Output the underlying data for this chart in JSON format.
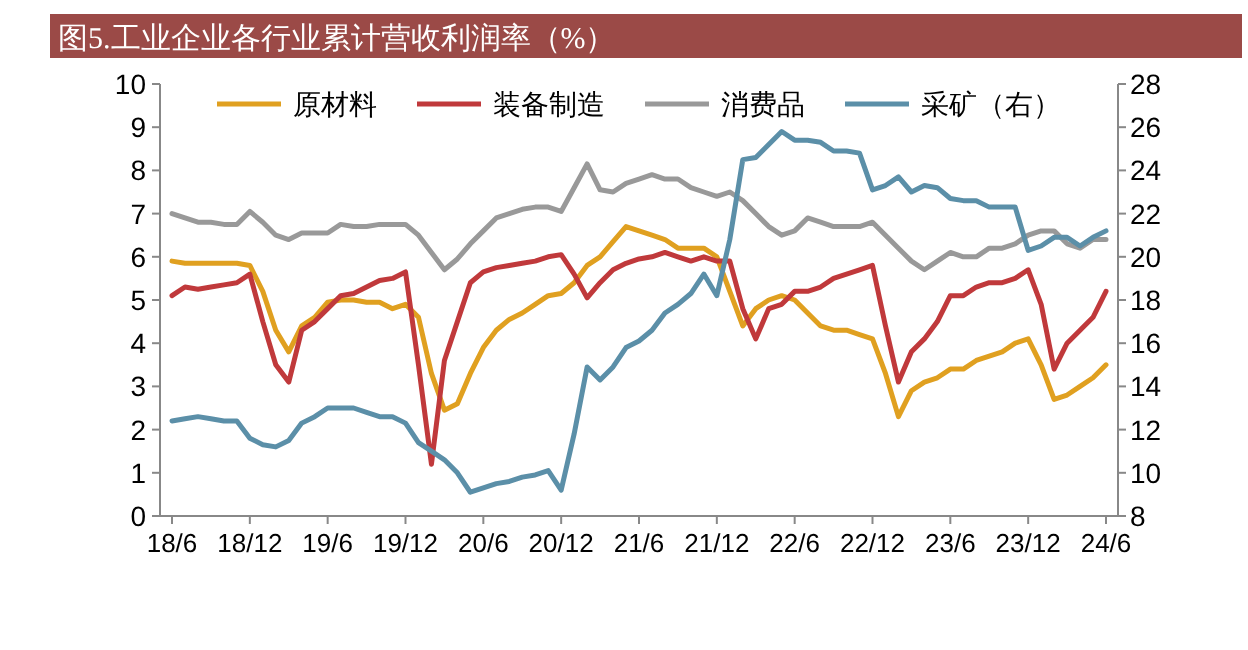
{
  "chart_data": {
    "type": "line",
    "title": "图5.工业企业各行业累计营收利润率（%）",
    "categories": [
      "18/6",
      null,
      null,
      null,
      null,
      null,
      "18/12",
      null,
      null,
      null,
      null,
      null,
      "19/6",
      null,
      null,
      null,
      null,
      null,
      "19/12",
      null,
      null,
      null,
      null,
      null,
      "20/6",
      null,
      null,
      null,
      null,
      null,
      "20/12",
      null,
      null,
      null,
      null,
      null,
      "21/6",
      null,
      null,
      null,
      null,
      null,
      "21/12",
      null,
      null,
      null,
      null,
      null,
      "22/6",
      null,
      null,
      null,
      null,
      null,
      "22/12",
      null,
      null,
      null,
      null,
      null,
      "23/6",
      null,
      null,
      null,
      null,
      null,
      "23/12",
      null,
      null,
      null,
      null,
      null,
      "24/6"
    ],
    "series": [
      {
        "name": "原材料",
        "color": "#e0a020",
        "values": [
          5.9,
          5.85,
          5.85,
          5.85,
          5.85,
          5.85,
          5.8,
          5.2,
          4.3,
          3.8,
          4.4,
          4.6,
          4.95,
          5.0,
          5.0,
          4.95,
          4.95,
          4.8,
          4.9,
          4.6,
          3.3,
          2.45,
          2.6,
          3.3,
          3.9,
          4.3,
          4.55,
          4.7,
          4.9,
          5.1,
          5.15,
          5.4,
          5.8,
          6.0,
          6.35,
          6.7,
          6.6,
          6.5,
          6.4,
          6.2,
          6.2,
          6.2,
          6.0,
          5.2,
          4.4,
          4.8,
          5.0,
          5.1,
          5.0,
          4.7,
          4.4,
          4.3,
          4.3,
          4.2,
          4.1,
          3.3,
          2.3,
          2.9,
          3.1,
          3.2,
          3.4,
          3.4,
          3.6,
          3.7,
          3.8,
          4.0,
          4.1,
          3.5,
          2.7,
          2.8,
          3.0,
          3.2,
          3.5
        ]
      },
      {
        "name": "装备制造",
        "color": "#c0393b",
        "values": [
          5.1,
          5.3,
          5.25,
          5.3,
          5.35,
          5.4,
          5.6,
          4.5,
          3.5,
          3.1,
          4.3,
          4.5,
          4.8,
          5.1,
          5.15,
          5.3,
          5.45,
          5.5,
          5.65,
          3.5,
          1.2,
          3.6,
          4.5,
          5.4,
          5.65,
          5.75,
          5.8,
          5.85,
          5.9,
          6.0,
          6.05,
          5.6,
          5.05,
          5.4,
          5.7,
          5.85,
          5.95,
          6.0,
          6.1,
          6.0,
          5.9,
          6.0,
          5.9,
          5.9,
          4.8,
          4.1,
          4.8,
          4.9,
          5.2,
          5.2,
          5.3,
          5.5,
          5.6,
          5.7,
          5.8,
          4.4,
          3.1,
          3.8,
          4.1,
          4.5,
          5.1,
          5.1,
          5.3,
          5.4,
          5.4,
          5.5,
          5.7,
          4.9,
          3.4,
          4.0,
          4.3,
          4.6,
          5.2
        ]
      },
      {
        "name": "消费品",
        "color": "#999999",
        "values": [
          7.0,
          6.9,
          6.8,
          6.8,
          6.75,
          6.75,
          7.05,
          6.8,
          6.5,
          6.4,
          6.55,
          6.55,
          6.55,
          6.75,
          6.7,
          6.7,
          6.75,
          6.75,
          6.75,
          6.5,
          6.1,
          5.7,
          5.95,
          6.3,
          6.6,
          6.9,
          7.0,
          7.1,
          7.15,
          7.15,
          7.05,
          7.6,
          8.15,
          7.55,
          7.5,
          7.7,
          7.8,
          7.9,
          7.8,
          7.8,
          7.6,
          7.5,
          7.4,
          7.5,
          7.3,
          7.0,
          6.7,
          6.5,
          6.6,
          6.9,
          6.8,
          6.7,
          6.7,
          6.7,
          6.8,
          6.5,
          6.2,
          5.9,
          5.7,
          5.9,
          6.1,
          6.0,
          6.0,
          6.2,
          6.2,
          6.3,
          6.5,
          6.6,
          6.6,
          6.3,
          6.2,
          6.4,
          6.4
        ]
      },
      {
        "name": "采矿（右）",
        "color": "#5b8fa8",
        "axis": "y2",
        "values": [
          12.4,
          12.5,
          12.6,
          12.5,
          12.4,
          12.4,
          11.6,
          11.3,
          11.2,
          11.5,
          12.3,
          12.6,
          13.0,
          13.0,
          13.0,
          12.8,
          12.6,
          12.6,
          12.3,
          11.4,
          11.0,
          10.6,
          10.0,
          9.1,
          9.3,
          9.5,
          9.6,
          9.8,
          9.9,
          10.1,
          9.2,
          11.8,
          14.9,
          14.3,
          14.9,
          15.8,
          16.1,
          16.6,
          17.4,
          17.8,
          18.3,
          19.2,
          18.2,
          20.8,
          24.5,
          24.6,
          25.2,
          25.8,
          25.4,
          25.4,
          25.3,
          24.9,
          24.9,
          24.8,
          23.1,
          23.3,
          23.7,
          23.0,
          23.3,
          23.2,
          22.7,
          22.6,
          22.6,
          22.3,
          22.3,
          22.3,
          20.3,
          20.5,
          20.9,
          20.9,
          20.5,
          20.9,
          21.2
        ]
      }
    ],
    "ylim": [
      0,
      10
    ],
    "yticks": [
      0,
      1,
      2,
      3,
      4,
      5,
      6,
      7,
      8,
      9,
      10
    ],
    "y2lim": [
      8,
      28
    ],
    "y2ticks": [
      8,
      10,
      12,
      14,
      16,
      18,
      20,
      22,
      24,
      26,
      28
    ],
    "legend": "top"
  }
}
